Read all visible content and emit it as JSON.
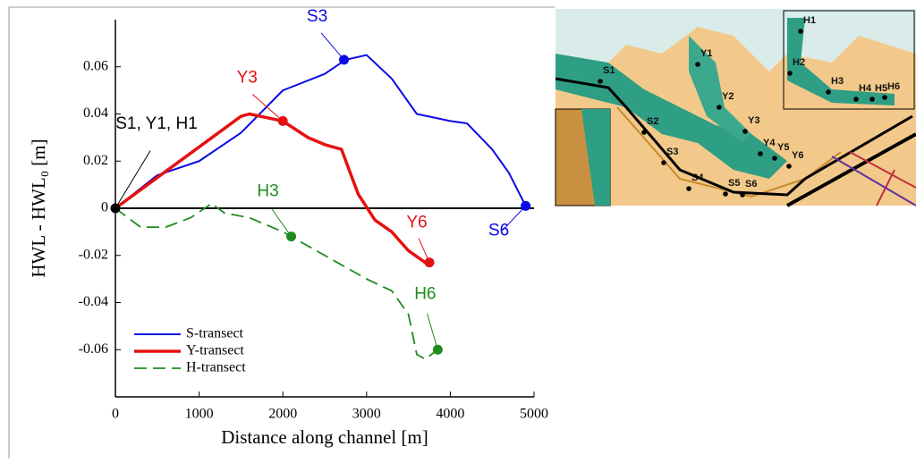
{
  "chart_data": {
    "type": "line",
    "xlabel": "Distance along channel [m]",
    "ylabel": "HWL - HWL₀ [m]",
    "xlim": [
      0,
      5000
    ],
    "ylim": [
      -0.08,
      0.08
    ],
    "xticks": [
      0,
      1000,
      2000,
      3000,
      4000,
      5000
    ],
    "yticks": [
      {
        "value": -0.06,
        "label": "-0.06"
      },
      {
        "value": -0.04,
        "label": "-0.04"
      },
      {
        "value": -0.02,
        "label": "-0.02"
      },
      0,
      {
        "value": 0.02,
        "label": "0.02"
      },
      {
        "value": 0.04,
        "label": "0.04"
      },
      {
        "value": 0.06,
        "label": "0.06"
      }
    ],
    "legend": "lower left",
    "series": [
      {
        "name": "S-transect",
        "color": "#0a0ae6",
        "dash": false,
        "x": [
          0,
          500,
          1000,
          1500,
          2000,
          2500,
          2750,
          3000,
          3300,
          3600,
          4000,
          4200,
          4500,
          4700,
          4900
        ],
        "values": [
          0,
          0.014,
          0.02,
          0.032,
          0.05,
          0.057,
          0.063,
          0.065,
          0.055,
          0.04,
          0.037,
          0.036,
          0.025,
          0.015,
          0.001
        ]
      },
      {
        "name": "Y-transect",
        "color": "#e61010",
        "dash": false,
        "x": [
          0,
          500,
          1000,
          1500,
          1600,
          2000,
          2300,
          2500,
          2700,
          2900,
          3100,
          3300,
          3500,
          3700,
          3750
        ],
        "values": [
          0,
          0.013,
          0.026,
          0.039,
          0.04,
          0.037,
          0.03,
          0.027,
          0.025,
          0.006,
          -0.005,
          -0.01,
          -0.018,
          -0.023,
          -0.023
        ]
      },
      {
        "name": "H-transect",
        "color": "#1e8c1e",
        "dash": true,
        "x": [
          0,
          300,
          600,
          900,
          1150,
          1300,
          1600,
          2000,
          2100,
          2500,
          2700,
          3000,
          3300,
          3500,
          3600,
          3700,
          3850
        ],
        "values": [
          0,
          -0.008,
          -0.008,
          -0.004,
          0.002,
          -0.002,
          -0.004,
          -0.01,
          -0.012,
          -0.02,
          -0.024,
          -0.03,
          -0.035,
          -0.045,
          -0.062,
          -0.064,
          -0.06
        ]
      }
    ],
    "annotations": [
      {
        "text": "S1, Y1, H1",
        "x": 0,
        "y": 0,
        "color": "#000000"
      },
      {
        "text": "S3",
        "x": 2730,
        "y": 0.063,
        "color": "#0a0ae6"
      },
      {
        "text": "S6",
        "x": 4900,
        "y": 0.001,
        "color": "#0a0ae6"
      },
      {
        "text": "Y3",
        "x": 2000,
        "y": 0.037,
        "color": "#e61010"
      },
      {
        "text": "Y6",
        "x": 3750,
        "y": -0.023,
        "color": "#e61010"
      },
      {
        "text": "H3",
        "x": 2100,
        "y": -0.012,
        "color": "#1e8c1e"
      },
      {
        "text": "H6",
        "x": 3850,
        "y": -0.06,
        "color": "#1e8c1e"
      }
    ]
  },
  "map": {
    "labels": [
      "S1",
      "Y1",
      "H1",
      "H2",
      "H3",
      "H4",
      "H5",
      "H6",
      "Y2",
      "S2",
      "Y3",
      "Y4",
      "Y5",
      "Y6",
      "S3",
      "S4",
      "S5",
      "S6"
    ]
  }
}
